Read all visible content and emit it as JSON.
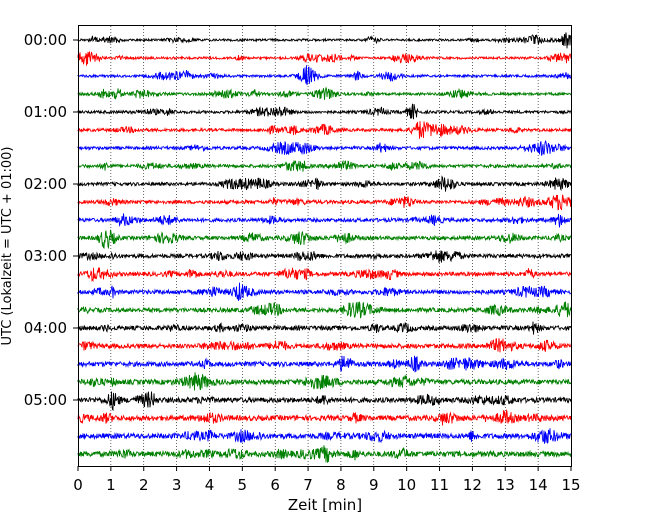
{
  "chart_data": {
    "type": "line",
    "title": "",
    "xlabel": "Zeit  [min]",
    "ylabel": "UTC (Lokalzeit = UTC + 01:00)",
    "xlim": [
      0,
      15
    ],
    "x_ticks": [
      "0",
      "1",
      "2",
      "3",
      "4",
      "5",
      "6",
      "7",
      "8",
      "9",
      "10",
      "11",
      "12",
      "13",
      "14",
      "15"
    ],
    "y_tick_labels": [
      "00:00",
      "01:00",
      "02:00",
      "03:00",
      "04:00",
      "05:00"
    ],
    "grid": {
      "x": true,
      "y": false,
      "style": "dotted"
    },
    "trace_colors": [
      "#000000",
      "#ff0000",
      "#0000ff",
      "#008000"
    ],
    "traces": [
      {
        "start": "00:00",
        "color": "#000000"
      },
      {
        "start": "00:15",
        "color": "#ff0000"
      },
      {
        "start": "00:30",
        "color": "#0000ff"
      },
      {
        "start": "00:45",
        "color": "#008000"
      },
      {
        "start": "01:00",
        "color": "#000000"
      },
      {
        "start": "01:15",
        "color": "#ff0000"
      },
      {
        "start": "01:30",
        "color": "#0000ff"
      },
      {
        "start": "01:45",
        "color": "#008000"
      },
      {
        "start": "02:00",
        "color": "#000000"
      },
      {
        "start": "02:15",
        "color": "#ff0000"
      },
      {
        "start": "02:30",
        "color": "#0000ff"
      },
      {
        "start": "02:45",
        "color": "#008000"
      },
      {
        "start": "03:00",
        "color": "#000000"
      },
      {
        "start": "03:15",
        "color": "#ff0000"
      },
      {
        "start": "03:30",
        "color": "#0000ff"
      },
      {
        "start": "03:45",
        "color": "#008000"
      },
      {
        "start": "04:00",
        "color": "#000000"
      },
      {
        "start": "04:15",
        "color": "#ff0000"
      },
      {
        "start": "04:30",
        "color": "#0000ff"
      },
      {
        "start": "04:45",
        "color": "#008000"
      },
      {
        "start": "05:00",
        "color": "#000000"
      },
      {
        "start": "05:15",
        "color": "#ff0000"
      },
      {
        "start": "05:30",
        "color": "#0000ff"
      },
      {
        "start": "05:45",
        "color": "#008000"
      }
    ]
  }
}
